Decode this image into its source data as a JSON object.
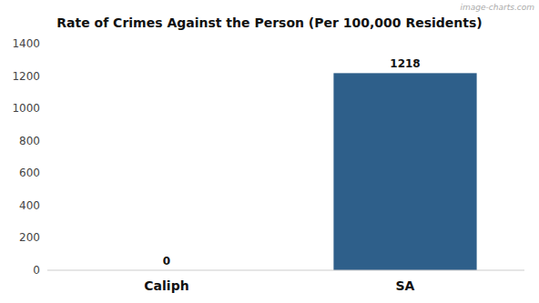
{
  "chart_data": {
    "type": "bar",
    "title": "Rate of Crimes Against the Person (Per 100,000 Residents)",
    "categories": [
      "Caliph",
      "SA"
    ],
    "values": [
      0,
      1218
    ],
    "colors": [
      "#888888",
      "#2e5f8a"
    ],
    "ylim": [
      0,
      1400
    ],
    "yticks": [
      0,
      200,
      400,
      600,
      800,
      1000,
      1200,
      1400
    ],
    "grid": false,
    "data_labels": true,
    "annotations": [
      "image-charts.com"
    ]
  }
}
